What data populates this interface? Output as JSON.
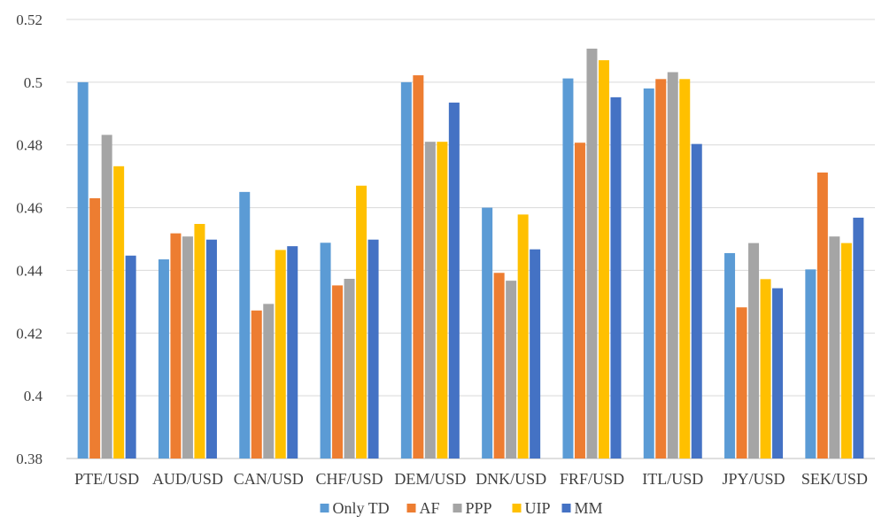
{
  "chart_data": {
    "type": "bar",
    "title": "",
    "xlabel": "",
    "ylabel": "",
    "categories": [
      "PTE/USD",
      "AUD/USD",
      "CAN/USD",
      "CHF/USD",
      "DEM/USD",
      "DNK/USD",
      "FRF/USD",
      "ITL/USD",
      "JPY/USD",
      "SEK/USD"
    ],
    "ylim": [
      0.38,
      0.52
    ],
    "yticks": [
      "0.38",
      "0.4",
      "0.42",
      "0.44",
      "0.46",
      "0.48",
      "0.5",
      "0.52"
    ],
    "grid": true,
    "legend_position": "bottom",
    "series": [
      {
        "name": "Only TD",
        "color": "#5B9BD5",
        "values": [
          0.5,
          0.4435,
          0.465,
          0.4488,
          0.5,
          0.46,
          0.5012,
          0.498,
          0.4455,
          0.4403
        ]
      },
      {
        "name": "AF",
        "color": "#ED7D31",
        "values": [
          0.463,
          0.4518,
          0.4272,
          0.4352,
          0.5022,
          0.4392,
          0.4807,
          0.501,
          0.4282,
          0.4712
        ]
      },
      {
        "name": "PPP",
        "color": "#A5A5A5",
        "values": [
          0.4832,
          0.4508,
          0.4293,
          0.4373,
          0.481,
          0.4367,
          0.5107,
          0.5032,
          0.4487,
          0.4508
        ]
      },
      {
        "name": "UIP",
        "color": "#FFC000",
        "values": [
          0.4732,
          0.4548,
          0.4465,
          0.467,
          0.481,
          0.4578,
          0.507,
          0.501,
          0.4372,
          0.4487
        ]
      },
      {
        "name": "MM",
        "color": "#4472C4",
        "values": [
          0.4447,
          0.4498,
          0.4477,
          0.4498,
          0.4935,
          0.4467,
          0.4952,
          0.4803,
          0.4343,
          0.4568
        ]
      }
    ]
  }
}
